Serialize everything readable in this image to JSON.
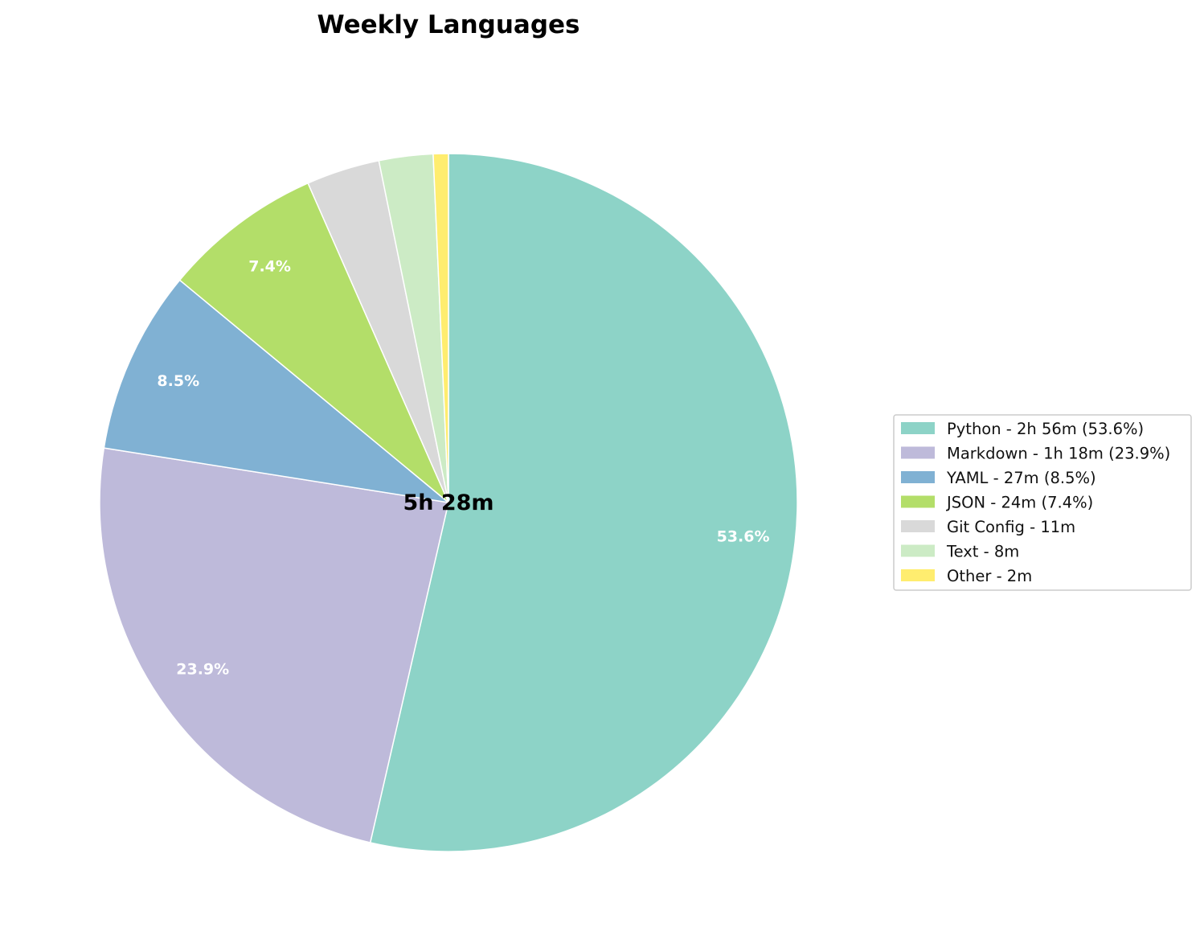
{
  "chart_data": {
    "type": "pie",
    "title": "Weekly Languages",
    "center_label": "5h 28m",
    "start_angle": 90,
    "direction": "clockwise",
    "legend_position": "right",
    "slices": [
      {
        "legend": "Python - 2h 56m (53.6%)",
        "minutes": 176,
        "percent": 53.6,
        "label": "53.6%",
        "color": "#8dd3c7"
      },
      {
        "legend": "Markdown - 1h 18m (23.9%)",
        "minutes": 78,
        "percent": 23.9,
        "label": "23.9%",
        "color": "#bebada"
      },
      {
        "legend": "YAML - 27m (8.5%)",
        "minutes": 27,
        "percent": 8.5,
        "label": "8.5%",
        "color": "#80b1d3"
      },
      {
        "legend": "JSON - 24m (7.4%)",
        "minutes": 24,
        "percent": 7.4,
        "label": "7.4%",
        "color": "#b3de69"
      },
      {
        "legend": "Git Config - 11m",
        "minutes": 11,
        "percent": 3.4,
        "label": "",
        "color": "#d9d9d9"
      },
      {
        "legend": "Text - 8m",
        "minutes": 8,
        "percent": 2.5,
        "label": "",
        "color": "#ccebc5"
      },
      {
        "legend": "Other - 2m",
        "minutes": 2,
        "percent": 0.7,
        "label": "",
        "color": "#ffed6f"
      }
    ]
  }
}
